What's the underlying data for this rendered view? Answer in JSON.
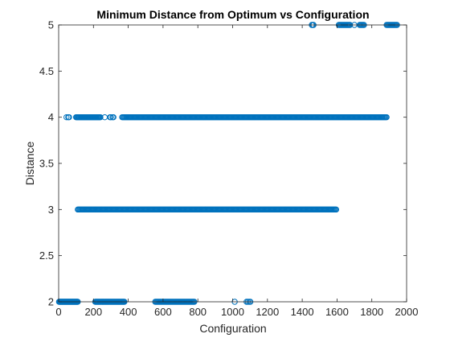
{
  "chart_data": {
    "type": "scatter",
    "title": "Minimum Distance from Optimum vs Configuration",
    "xlabel": "Configuration",
    "ylabel": "Distance",
    "xlim": [
      0,
      2000
    ],
    "ylim": [
      2,
      5
    ],
    "xticks": [
      0,
      200,
      400,
      600,
      800,
      1000,
      1200,
      1400,
      1600,
      1800,
      2000
    ],
    "yticks": [
      2,
      2.5,
      3,
      3.5,
      4,
      4.5,
      5
    ],
    "xtick_labels": [
      "0",
      "200",
      "400",
      "600",
      "800",
      "1000",
      "1200",
      "1400",
      "1600",
      "1800",
      "2000"
    ],
    "ytick_labels": [
      "2",
      "2.5",
      "3",
      "3.5",
      "4",
      "4.5",
      "5"
    ],
    "marker": "open-circle",
    "grid": false,
    "legend": "none",
    "color": "#0072BD",
    "series": [
      {
        "y": 2,
        "x": [
          2,
          5,
          8,
          11,
          14,
          17,
          20,
          23,
          26,
          29,
          32,
          35,
          38,
          41,
          44,
          47,
          50,
          53,
          56,
          59,
          62,
          65,
          68,
          71,
          74,
          77,
          80,
          83,
          86,
          89,
          92,
          95,
          98,
          101,
          104,
          107,
          110,
          210,
          214,
          218,
          222,
          226,
          230,
          234,
          238,
          242,
          246,
          250,
          254,
          258,
          262,
          266,
          270,
          274,
          278,
          282,
          286,
          290,
          294,
          298,
          302,
          306,
          310,
          314,
          318,
          322,
          326,
          330,
          334,
          338,
          342,
          346,
          350,
          354,
          358,
          362,
          366,
          370,
          374,
          378,
          555,
          560,
          565,
          570,
          575,
          580,
          585,
          590,
          595,
          600,
          605,
          610,
          615,
          620,
          625,
          630,
          635,
          640,
          645,
          650,
          655,
          660,
          665,
          670,
          675,
          680,
          685,
          690,
          695,
          700,
          705,
          710,
          715,
          720,
          725,
          730,
          735,
          740,
          745,
          750,
          755,
          760,
          765,
          770,
          775,
          780,
          1012,
          1080,
          1087,
          1095,
          1102
        ]
      },
      {
        "y": 3,
        "x": [
          110,
          115,
          120,
          125,
          130,
          135,
          140,
          145,
          150,
          155,
          160,
          165,
          170,
          175,
          180,
          185,
          190,
          195,
          200,
          205,
          210,
          215,
          220,
          225,
          230,
          235,
          240,
          245,
          250,
          255,
          260,
          265,
          270,
          275,
          280,
          285,
          290,
          295,
          300,
          305,
          310,
          315,
          320,
          325,
          330,
          335,
          340,
          345,
          350,
          355,
          360,
          365,
          370,
          375,
          380,
          385,
          390,
          395,
          400,
          405,
          410,
          415,
          420,
          425,
          430,
          435,
          440,
          445,
          450,
          455,
          460,
          465,
          470,
          475,
          480,
          485,
          490,
          495,
          500,
          505,
          510,
          515,
          520,
          525,
          530,
          535,
          540,
          545,
          550,
          555,
          560,
          565,
          570,
          575,
          580,
          585,
          590,
          595,
          600,
          605,
          610,
          615,
          620,
          625,
          630,
          635,
          640,
          645,
          650,
          655,
          660,
          665,
          670,
          675,
          680,
          685,
          690,
          695,
          700,
          705,
          710,
          715,
          720,
          725,
          730,
          735,
          740,
          745,
          750,
          755,
          760,
          765,
          770,
          775,
          780,
          785,
          790,
          795,
          800,
          805,
          810,
          815,
          820,
          825,
          830,
          835,
          840,
          845,
          850,
          855,
          860,
          865,
          870,
          875,
          880,
          885,
          890,
          895,
          900,
          905,
          910,
          915,
          920,
          925,
          930,
          935,
          940,
          945,
          950,
          955,
          960,
          965,
          970,
          975,
          980,
          985,
          990,
          995,
          1000,
          1005,
          1010,
          1015,
          1020,
          1025,
          1030,
          1035,
          1040,
          1045,
          1050,
          1055,
          1060,
          1065,
          1070,
          1075,
          1080,
          1085,
          1090,
          1095,
          1100,
          1105,
          1110,
          1115,
          1120,
          1125,
          1130,
          1135,
          1140,
          1145,
          1150,
          1155,
          1160,
          1165,
          1170,
          1175,
          1180,
          1185,
          1190,
          1195,
          1200,
          1205,
          1210,
          1215,
          1220,
          1225,
          1230,
          1235,
          1240,
          1245,
          1250,
          1255,
          1260,
          1265,
          1270,
          1275,
          1280,
          1285,
          1290,
          1295,
          1300,
          1305,
          1310,
          1315,
          1320,
          1325,
          1330,
          1335,
          1340,
          1345,
          1350,
          1355,
          1360,
          1365,
          1370,
          1375,
          1380,
          1385,
          1390,
          1395,
          1400,
          1405,
          1410,
          1415,
          1420,
          1425,
          1430,
          1435,
          1440,
          1445,
          1450,
          1455,
          1460,
          1465,
          1470,
          1475,
          1480,
          1485,
          1490,
          1495,
          1500,
          1505,
          1510,
          1515,
          1520,
          1525,
          1530,
          1535,
          1540,
          1545,
          1550,
          1555,
          1560,
          1565,
          1570,
          1575,
          1580,
          1585,
          1590,
          1595
        ]
      },
      {
        "y": 4,
        "x": [
          45,
          55,
          60,
          100,
          104,
          108,
          112,
          116,
          120,
          124,
          128,
          132,
          136,
          140,
          144,
          148,
          152,
          156,
          160,
          164,
          168,
          172,
          176,
          180,
          184,
          188,
          192,
          196,
          200,
          204,
          208,
          212,
          216,
          220,
          224,
          228,
          232,
          236,
          240,
          265,
          295,
          300,
          310,
          315,
          365,
          370,
          375,
          380,
          385,
          390,
          395,
          400,
          405,
          410,
          415,
          420,
          425,
          430,
          435,
          440,
          445,
          450,
          455,
          460,
          465,
          470,
          475,
          480,
          485,
          490,
          495,
          500,
          505,
          510,
          515,
          520,
          525,
          530,
          535,
          540,
          545,
          550,
          555,
          560,
          565,
          570,
          575,
          580,
          585,
          590,
          595,
          600,
          605,
          610,
          615,
          620,
          625,
          630,
          635,
          640,
          645,
          650,
          655,
          660,
          665,
          670,
          675,
          680,
          685,
          690,
          695,
          700,
          705,
          710,
          715,
          720,
          725,
          730,
          735,
          740,
          745,
          750,
          755,
          760,
          765,
          770,
          775,
          780,
          785,
          790,
          795,
          800,
          805,
          810,
          815,
          820,
          825,
          830,
          835,
          840,
          845,
          850,
          855,
          860,
          865,
          870,
          875,
          880,
          885,
          890,
          895,
          900,
          905,
          910,
          915,
          920,
          925,
          930,
          935,
          940,
          945,
          950,
          955,
          960,
          965,
          970,
          975,
          980,
          985,
          990,
          995,
          1000,
          1005,
          1010,
          1015,
          1020,
          1025,
          1030,
          1035,
          1040,
          1045,
          1050,
          1055,
          1060,
          1065,
          1070,
          1075,
          1080,
          1085,
          1090,
          1095,
          1100,
          1105,
          1110,
          1115,
          1120,
          1125,
          1130,
          1135,
          1140,
          1145,
          1150,
          1155,
          1160,
          1165,
          1170,
          1175,
          1180,
          1185,
          1190,
          1195,
          1200,
          1205,
          1210,
          1215,
          1220,
          1225,
          1230,
          1235,
          1240,
          1245,
          1250,
          1255,
          1260,
          1265,
          1270,
          1275,
          1280,
          1285,
          1290,
          1295,
          1300,
          1305,
          1310,
          1315,
          1320,
          1325,
          1330,
          1335,
          1340,
          1345,
          1350,
          1355,
          1360,
          1365,
          1370,
          1375,
          1380,
          1385,
          1390,
          1395,
          1400,
          1405,
          1410,
          1415,
          1420,
          1425,
          1430,
          1435,
          1440,
          1445,
          1450,
          1455,
          1460,
          1465,
          1470,
          1475,
          1480,
          1485,
          1490,
          1495,
          1500,
          1505,
          1510,
          1515,
          1520,
          1525,
          1530,
          1535,
          1540,
          1545,
          1550,
          1555,
          1560,
          1565,
          1570,
          1575,
          1580,
          1585,
          1590,
          1595,
          1600,
          1605,
          1610,
          1615,
          1620,
          1625,
          1630,
          1635,
          1640,
          1645,
          1650,
          1655,
          1660,
          1665,
          1670,
          1675,
          1680,
          1685,
          1690,
          1695,
          1700,
          1705,
          1710,
          1715,
          1720,
          1725,
          1730,
          1735,
          1740,
          1745,
          1750,
          1755,
          1760,
          1765,
          1770,
          1775,
          1780,
          1785,
          1790,
          1795,
          1800,
          1805,
          1810,
          1815,
          1820,
          1825,
          1830,
          1835,
          1840,
          1845,
          1850,
          1855,
          1860,
          1865,
          1870,
          1875,
          1880,
          1885
        ]
      },
      {
        "y": 5,
        "x": [
          1455,
          1460,
          1465,
          1610,
          1615,
          1620,
          1625,
          1630,
          1635,
          1640,
          1645,
          1650,
          1655,
          1660,
          1665,
          1670,
          1675,
          1700,
          1730,
          1735,
          1740,
          1745,
          1750,
          1755,
          1885,
          1890,
          1895,
          1900,
          1905,
          1910,
          1915,
          1920,
          1925,
          1930,
          1935,
          1940,
          1945
        ]
      }
    ]
  }
}
